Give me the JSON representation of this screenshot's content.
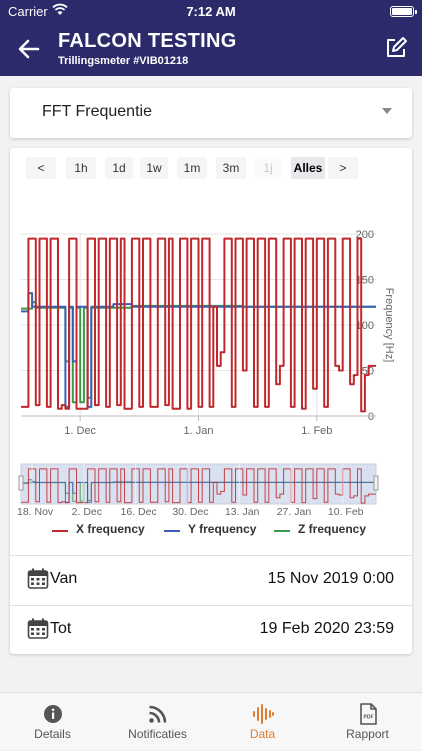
{
  "status_bar": {
    "carrier": "Carrier",
    "time": "7:12 AM"
  },
  "header": {
    "title": "FALCON TESTING",
    "subtitle": "Trillingsmeter #VIB01218"
  },
  "selector": {
    "value": "FFT Frequentie"
  },
  "range_buttons": [
    {
      "label": "<",
      "state": "normal"
    },
    {
      "label": "1h",
      "state": "normal"
    },
    {
      "label": "1d",
      "state": "normal"
    },
    {
      "label": "1w",
      "state": "normal"
    },
    {
      "label": "1m",
      "state": "normal"
    },
    {
      "label": "3m",
      "state": "normal"
    },
    {
      "label": "1j",
      "state": "disabled"
    },
    {
      "label": "Alles",
      "state": "active"
    },
    {
      "label": ">",
      "state": "normal"
    }
  ],
  "chart_data": {
    "type": "line",
    "title": "",
    "ylabel": "Frequency [Hz]",
    "ylim": [
      0,
      200
    ],
    "y_ticks": [
      "0",
      "50",
      "100",
      "150",
      "200"
    ],
    "x_ticks": [
      "1. Dec",
      "1. Jan",
      "1. Feb"
    ],
    "navigator_ticks": [
      "18. Nov",
      "2. Dec",
      "16. Dec",
      "30. Dec",
      "13. Jan",
      "27. Jan",
      "10. Feb"
    ],
    "x_range": [
      "15 Nov 2019",
      "19 Feb 2020"
    ],
    "grid": true,
    "legend_position": "bottom",
    "series": [
      {
        "name": "X frequency",
        "color": "#c0282d",
        "points": [
          [
            0,
            10
          ],
          [
            2,
            10
          ],
          [
            2,
            195
          ],
          [
            4,
            195
          ],
          [
            4,
            12
          ],
          [
            5,
            12
          ],
          [
            5,
            195
          ],
          [
            7,
            195
          ],
          [
            7,
            10
          ],
          [
            8,
            10
          ],
          [
            8,
            195
          ],
          [
            10,
            195
          ],
          [
            10,
            8
          ],
          [
            11,
            8
          ],
          [
            11,
            12
          ],
          [
            12,
            12
          ],
          [
            12,
            8
          ],
          [
            13,
            8
          ],
          [
            13,
            195
          ],
          [
            15,
            195
          ],
          [
            15,
            8
          ],
          [
            18,
            8
          ],
          [
            18,
            195
          ],
          [
            20,
            195
          ],
          [
            20,
            12
          ],
          [
            21,
            12
          ],
          [
            21,
            195
          ],
          [
            23,
            195
          ],
          [
            23,
            10
          ],
          [
            24,
            10
          ],
          [
            24,
            195
          ],
          [
            26,
            195
          ],
          [
            26,
            12
          ],
          [
            27,
            12
          ],
          [
            27,
            195
          ],
          [
            28,
            195
          ],
          [
            28,
            8
          ],
          [
            30,
            8
          ],
          [
            30,
            195
          ],
          [
            32,
            195
          ],
          [
            32,
            10
          ],
          [
            33,
            10
          ],
          [
            33,
            195
          ],
          [
            35,
            195
          ],
          [
            35,
            10
          ],
          [
            37,
            10
          ],
          [
            37,
            195
          ],
          [
            39,
            195
          ],
          [
            39,
            12
          ],
          [
            40,
            12
          ],
          [
            40,
            195
          ],
          [
            41,
            195
          ],
          [
            41,
            8
          ],
          [
            43,
            8
          ],
          [
            43,
            195
          ],
          [
            45,
            195
          ],
          [
            45,
            8
          ],
          [
            46,
            8
          ],
          [
            46,
            195
          ],
          [
            48,
            195
          ],
          [
            48,
            10
          ],
          [
            49,
            10
          ],
          [
            49,
            195
          ],
          [
            51,
            195
          ],
          [
            51,
            10
          ],
          [
            52,
            10
          ],
          [
            52,
            120
          ],
          [
            53,
            120
          ],
          [
            53,
            55
          ],
          [
            54,
            55
          ],
          [
            54,
            70
          ],
          [
            55,
            70
          ],
          [
            55,
            195
          ],
          [
            57,
            195
          ],
          [
            57,
            10
          ],
          [
            58,
            10
          ],
          [
            58,
            195
          ],
          [
            60,
            195
          ],
          [
            60,
            50
          ],
          [
            61,
            50
          ],
          [
            61,
            195
          ],
          [
            63,
            195
          ],
          [
            63,
            10
          ],
          [
            64,
            10
          ],
          [
            64,
            195
          ],
          [
            66,
            195
          ],
          [
            66,
            10
          ],
          [
            67,
            10
          ],
          [
            67,
            195
          ],
          [
            69,
            195
          ],
          [
            69,
            35
          ],
          [
            70,
            35
          ],
          [
            70,
            55
          ],
          [
            71,
            55
          ],
          [
            71,
            195
          ],
          [
            73,
            195
          ],
          [
            73,
            10
          ],
          [
            74,
            10
          ],
          [
            74,
            195
          ],
          [
            76,
            195
          ],
          [
            76,
            8
          ],
          [
            77,
            8
          ],
          [
            77,
            195
          ],
          [
            79,
            195
          ],
          [
            79,
            30
          ],
          [
            80,
            30
          ],
          [
            80,
            195
          ],
          [
            82,
            195
          ],
          [
            82,
            10
          ],
          [
            83,
            10
          ],
          [
            83,
            195
          ],
          [
            85,
            195
          ],
          [
            85,
            55
          ],
          [
            86,
            55
          ],
          [
            86,
            50
          ],
          [
            87,
            50
          ],
          [
            87,
            195
          ],
          [
            89,
            195
          ],
          [
            89,
            35
          ],
          [
            90,
            35
          ],
          [
            90,
            45
          ],
          [
            91,
            45
          ],
          [
            91,
            195
          ],
          [
            92,
            195
          ],
          [
            92,
            5
          ],
          [
            93,
            5
          ],
          [
            93,
            45
          ],
          [
            94,
            45
          ],
          [
            94,
            55
          ],
          [
            96,
            55
          ],
          [
            96,
            55
          ]
        ]
      },
      {
        "name": "Y frequency",
        "color": "#3b5fb5",
        "points": [
          [
            0,
            115
          ],
          [
            2,
            115
          ],
          [
            2,
            135
          ],
          [
            3,
            135
          ],
          [
            3,
            120
          ],
          [
            12,
            120
          ],
          [
            12,
            10
          ],
          [
            13,
            10
          ],
          [
            13,
            120
          ],
          [
            14,
            120
          ],
          [
            14,
            60
          ],
          [
            15,
            60
          ],
          [
            15,
            120
          ],
          [
            18,
            120
          ],
          [
            18,
            10
          ],
          [
            19,
            10
          ],
          [
            19,
            120
          ],
          [
            25,
            120
          ],
          [
            25,
            123
          ],
          [
            30,
            123
          ],
          [
            30,
            120
          ],
          [
            96,
            120
          ]
        ]
      },
      {
        "name": "Z frequency",
        "color": "#3a9a4a",
        "points": [
          [
            0,
            118
          ],
          [
            3,
            118
          ],
          [
            3,
            125
          ],
          [
            4,
            125
          ],
          [
            4,
            119
          ],
          [
            12,
            119
          ],
          [
            12,
            60
          ],
          [
            13,
            60
          ],
          [
            13,
            119
          ],
          [
            14,
            119
          ],
          [
            14,
            15
          ],
          [
            15,
            15
          ],
          [
            15,
            119
          ],
          [
            16,
            119
          ],
          [
            16,
            15
          ],
          [
            17,
            15
          ],
          [
            17,
            119
          ],
          [
            18,
            119
          ],
          [
            18,
            20
          ],
          [
            19,
            20
          ],
          [
            19,
            119
          ],
          [
            30,
            119
          ],
          [
            30,
            121
          ],
          [
            60,
            121
          ],
          [
            60,
            120
          ],
          [
            96,
            120
          ]
        ]
      }
    ]
  },
  "dates": {
    "from_label": "Van",
    "from_value": "15 Nov 2019 0:00",
    "to_label": "Tot",
    "to_value": "19 Feb 2020 23:59"
  },
  "tabs": [
    {
      "label": "Details",
      "icon": "info-icon"
    },
    {
      "label": "Notificaties",
      "icon": "rss-icon"
    },
    {
      "label": "Data",
      "icon": "waveform-icon"
    },
    {
      "label": "Rapport",
      "icon": "pdf-icon"
    }
  ],
  "colors": {
    "header": "#2b2a6b",
    "accent": "#e07c2d"
  }
}
